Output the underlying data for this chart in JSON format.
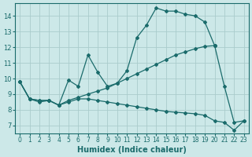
{
  "xlabel": "Humidex (Indice chaleur)",
  "bg_color": "#cce8e8",
  "grid_color": "#aacccc",
  "line_color": "#1a6b6b",
  "xlim": [
    -0.5,
    23.5
  ],
  "ylim": [
    6.5,
    14.8
  ],
  "xticks": [
    0,
    1,
    2,
    3,
    4,
    5,
    6,
    7,
    8,
    9,
    10,
    11,
    12,
    13,
    14,
    15,
    16,
    17,
    18,
    19,
    20,
    21,
    22,
    23
  ],
  "yticks": [
    7,
    8,
    9,
    10,
    11,
    12,
    13,
    14
  ],
  "series": [
    {
      "x": [
        0,
        1,
        2,
        3,
        4,
        5,
        6,
        7,
        8,
        9,
        10,
        11,
        12,
        13,
        14,
        15,
        16,
        17,
        18,
        19,
        20,
        21,
        22,
        23
      ],
      "y": [
        9.8,
        8.7,
        8.6,
        8.6,
        8.3,
        9.9,
        9.5,
        11.5,
        10.4,
        9.5,
        9.7,
        10.5,
        12.6,
        13.4,
        14.5,
        14.3,
        14.3,
        14.1,
        14.0,
        13.6,
        12.1,
        null,
        null,
        null
      ]
    },
    {
      "x": [
        0,
        1,
        2,
        3,
        4,
        5,
        6,
        7,
        8,
        9,
        10,
        11,
        12,
        13,
        14,
        15,
        16,
        17,
        18,
        19,
        20
      ],
      "y": [
        9.8,
        8.7,
        8.6,
        8.6,
        8.3,
        8.6,
        8.8,
        9.0,
        9.2,
        9.4,
        9.7,
        10.0,
        10.3,
        10.6,
        10.9,
        11.2,
        11.5,
        11.7,
        11.9,
        12.05,
        12.1
      ]
    },
    {
      "x": [
        0,
        1,
        2,
        3,
        4,
        5,
        6,
        7,
        8,
        9,
        10,
        11,
        12,
        13,
        14,
        15,
        16,
        17,
        18,
        19,
        20,
        21,
        22,
        23
      ],
      "y": [
        9.8,
        8.7,
        8.5,
        8.6,
        8.3,
        8.5,
        8.7,
        8.7,
        8.6,
        8.5,
        8.4,
        8.3,
        8.2,
        8.1,
        8.0,
        7.9,
        7.85,
        7.8,
        7.75,
        7.65,
        7.3,
        7.2,
        6.7,
        7.3
      ]
    },
    {
      "x": [
        20,
        21,
        22,
        23
      ],
      "y": [
        12.1,
        9.5,
        7.2,
        7.3
      ]
    }
  ],
  "marker": "D",
  "markersize": 2.0,
  "linewidth": 0.9
}
